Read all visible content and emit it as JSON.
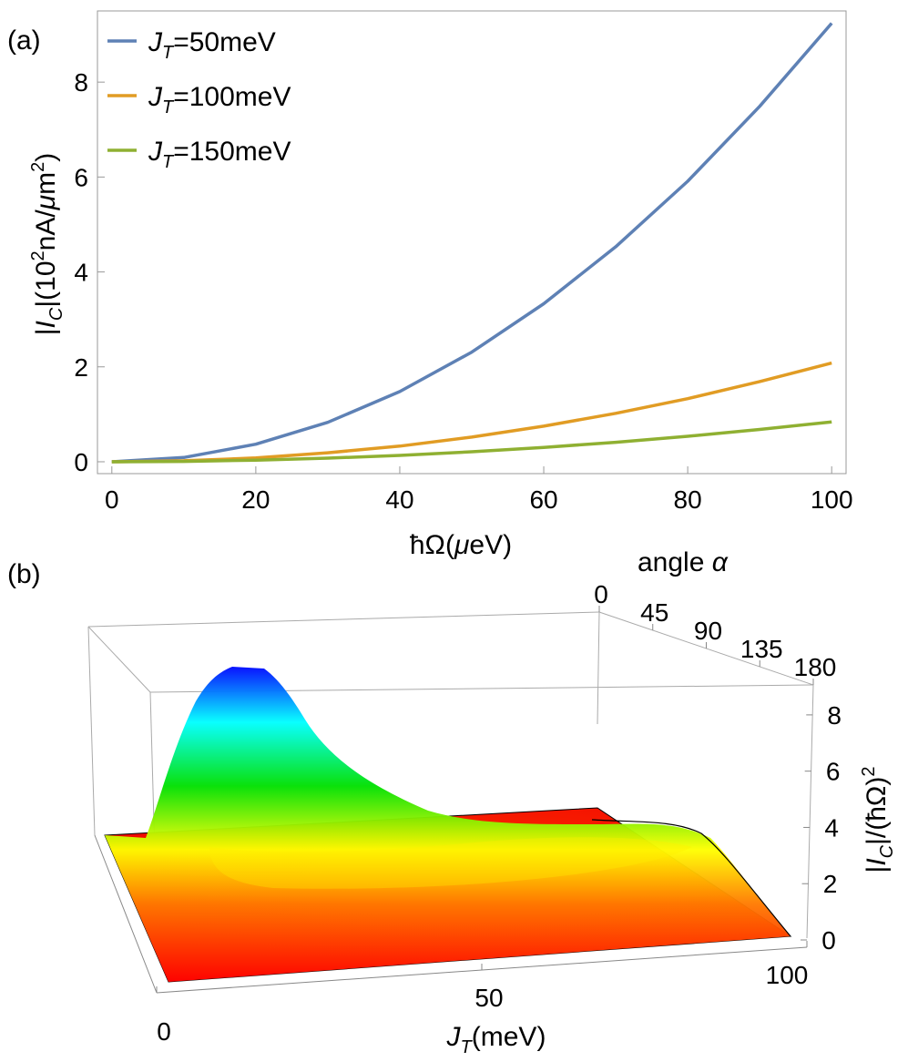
{
  "panel_a": {
    "label": "(a)",
    "ylabel": "|I_C|(10^2nA/μm^2)",
    "xlabel": "ħΩ(μeV)"
  },
  "panel_b": {
    "label": "(b)",
    "angle_axis_label": "angle α",
    "z_axis_label": "|I_C|/(ħΩ)^2",
    "x_axis_label": "J_T(meV)"
  },
  "chart_data": [
    {
      "type": "line",
      "x": [
        0,
        10,
        20,
        30,
        40,
        50,
        60,
        70,
        80,
        90,
        100
      ],
      "xlabel": "ħΩ(μeV)",
      "ylabel": "|I_C|(10^2nA/μm^2)",
      "xlim": [
        -2,
        102
      ],
      "ylim": [
        -0.25,
        9.5
      ],
      "xticks": [
        0,
        20,
        40,
        60,
        80,
        100
      ],
      "yticks": [
        0,
        2,
        4,
        6,
        8
      ],
      "grid": false,
      "legend_position": "top-left",
      "series": [
        {
          "name": "J_T=50meV",
          "color": "#5e81b5",
          "values": [
            0,
            0.09,
            0.37,
            0.83,
            1.48,
            2.31,
            3.33,
            4.53,
            5.91,
            7.49,
            9.24
          ]
        },
        {
          "name": "J_T=100meV",
          "color": "#e19c24",
          "values": [
            0,
            0.02,
            0.08,
            0.19,
            0.33,
            0.52,
            0.75,
            1.02,
            1.33,
            1.69,
            2.08
          ]
        },
        {
          "name": "J_T=150meV",
          "color": "#8fb032",
          "values": [
            0,
            0.008,
            0.034,
            0.076,
            0.134,
            0.21,
            0.302,
            0.41,
            0.537,
            0.68,
            0.84
          ]
        }
      ]
    },
    {
      "type": "surface3d",
      "x_label": "J_T(meV)",
      "x_ticks": [
        0,
        50,
        100
      ],
      "x_range": [
        0,
        100
      ],
      "angle_label": "angle α",
      "angle_ticks": [
        0,
        45,
        90,
        135,
        180
      ],
      "angle_range": [
        0,
        180
      ],
      "z_label": "|I_C|/(ħΩ)^2",
      "z_ticks": [
        0,
        2,
        4,
        6,
        8
      ],
      "z_range": [
        0,
        9
      ],
      "colormap": "red-yellow-green-cyan-blue",
      "profile_at_alpha_180": {
        "J_T": [
          0,
          5,
          10,
          15,
          20,
          25,
          30,
          40,
          50,
          60,
          70,
          80,
          90,
          100
        ],
        "value": [
          0.1,
          3.2,
          8.9,
          8.0,
          6.0,
          4.6,
          3.8,
          3.3,
          3.1,
          3.1,
          3.0,
          2.6,
          1.0,
          0.05
        ]
      },
      "peak": {
        "J_T": 10,
        "value": 8.9
      }
    }
  ]
}
